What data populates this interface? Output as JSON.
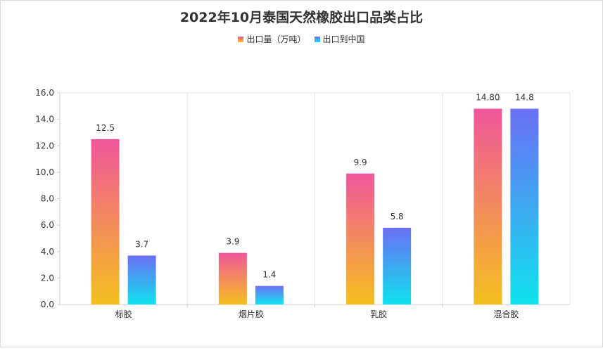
{
  "chart_data": {
    "type": "bar",
    "title": "2022年10月泰国天然橡胶出口品类占比",
    "categories": [
      "标胶",
      "烟片胶",
      "乳胶",
      "混合胶"
    ],
    "series": [
      {
        "name": "出口量（万吨）",
        "values": [
          12.5,
          3.9,
          9.9,
          14.8
        ],
        "labels": [
          "12.5",
          "3.9",
          "9.9",
          "14.80"
        ],
        "gradient": [
          "#f0569a",
          "#f5c020"
        ]
      },
      {
        "name": "出口到中国",
        "values": [
          3.7,
          1.4,
          5.8,
          14.8
        ],
        "labels": [
          "3.7",
          "1.4",
          "5.8",
          "14.8"
        ],
        "gradient": [
          "#6b6ff5",
          "#10e2ed"
        ]
      }
    ],
    "ylim": [
      0,
      16
    ],
    "yticks": [
      "0.0",
      "2.0",
      "4.0",
      "6.0",
      "8.0",
      "10.0",
      "12.0",
      "14.0",
      "16.0"
    ],
    "legend_position": "top-center",
    "grid": "vertical category separators"
  }
}
